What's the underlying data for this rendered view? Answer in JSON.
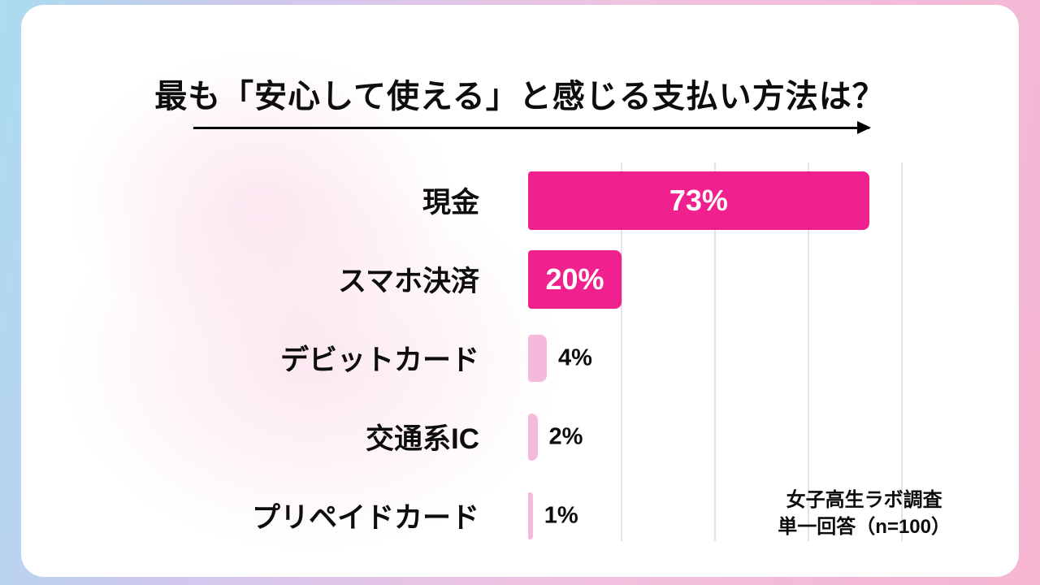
{
  "title": "最も「安心して使える」と感じる支払い方法は？",
  "source": {
    "line1": "女子高生ラボ調査",
    "line2": "単一回答（n=100）"
  },
  "colors": {
    "bar_strong": "#F0218E",
    "bar_light": "#F5B9DB",
    "value_inside": "#FFFFFF",
    "value_outside": "#0D0D0D"
  },
  "chart_data": {
    "type": "bar",
    "orientation": "horizontal",
    "title": "最も「安心して使える」と感じる支払い方法は？",
    "categories": [
      "現金",
      "スマホ決済",
      "デビットカード",
      "交通系IC",
      "プリペイドカード"
    ],
    "values": [
      73,
      20,
      4,
      2,
      1
    ],
    "value_labels": [
      "73%",
      "20%",
      "4%",
      "2%",
      "1%"
    ],
    "xlabel": "",
    "ylabel": "",
    "xlim": [
      0,
      80
    ],
    "gridline_step": 20,
    "grid": true,
    "legend": false,
    "annotations": [
      "女子高生ラボ調査",
      "単一回答（n=100）"
    ]
  }
}
